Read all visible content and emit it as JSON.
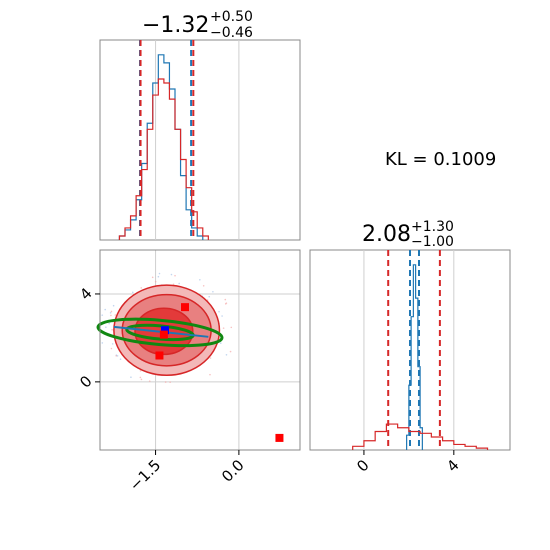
{
  "chart_data": [
    {
      "type": "histogram",
      "panel": "marginal-x",
      "title": {
        "median": "−1.32",
        "plus": "+0.50",
        "minus": "−0.46"
      },
      "xlim": [
        -2.5,
        1.1
      ],
      "series": [
        {
          "name": "",
          "color": "#1f77b4",
          "bins": [
            [
              -2.15,
              -2.05,
              0.02
            ],
            [
              -2.05,
              -1.95,
              0.05
            ],
            [
              -1.95,
              -1.85,
              0.1
            ],
            [
              -1.85,
              -1.75,
              0.2
            ],
            [
              -1.75,
              -1.65,
              0.38
            ],
            [
              -1.65,
              -1.55,
              0.58
            ],
            [
              -1.55,
              -1.45,
              0.78
            ],
            [
              -1.45,
              -1.35,
              0.92
            ],
            [
              -1.35,
              -1.25,
              0.88
            ],
            [
              -1.25,
              -1.15,
              0.75
            ],
            [
              -1.15,
              -1.05,
              0.55
            ],
            [
              -1.05,
              -0.95,
              0.32
            ],
            [
              -0.95,
              -0.85,
              0.15
            ],
            [
              -0.85,
              -0.75,
              0.06
            ],
            [
              -0.75,
              -0.65,
              0.02
            ]
          ],
          "quantiles": [
            -1.78,
            -0.86
          ]
        },
        {
          "name": "",
          "color": "#d62728",
          "bins": [
            [
              -2.15,
              -2.05,
              0.02
            ],
            [
              -2.05,
              -1.95,
              0.06
            ],
            [
              -1.95,
              -1.85,
              0.12
            ],
            [
              -1.85,
              -1.75,
              0.22
            ],
            [
              -1.75,
              -1.65,
              0.35
            ],
            [
              -1.65,
              -1.55,
              0.55
            ],
            [
              -1.55,
              -1.45,
              0.72
            ],
            [
              -1.45,
              -1.35,
              0.8
            ],
            [
              -1.35,
              -1.25,
              0.78
            ],
            [
              -1.25,
              -1.15,
              0.7
            ],
            [
              -1.15,
              -1.05,
              0.55
            ],
            [
              -1.05,
              -0.95,
              0.4
            ],
            [
              -0.95,
              -0.85,
              0.26
            ],
            [
              -0.85,
              -0.75,
              0.14
            ],
            [
              -0.75,
              -0.65,
              0.06
            ],
            [
              -0.65,
              -0.55,
              0.02
            ]
          ],
          "quantiles": [
            -1.77,
            -0.82
          ]
        }
      ]
    },
    {
      "type": "histogram",
      "panel": "marginal-y",
      "title": {
        "median": "2.08",
        "plus": "+1.30",
        "minus": "−1.00"
      },
      "xlim": [
        -2.4,
        6.5
      ],
      "xticks": [
        "0",
        "4"
      ],
      "series": [
        {
          "name": "",
          "color": "#1f77b4",
          "bins": [
            [
              1.9,
              2.0,
              0.08
            ],
            [
              2.0,
              2.1,
              0.35
            ],
            [
              2.1,
              2.2,
              0.72
            ],
            [
              2.2,
              2.3,
              1.0
            ],
            [
              2.3,
              2.4,
              0.82
            ],
            [
              2.4,
              2.5,
              0.45
            ],
            [
              2.5,
              2.6,
              0.12
            ]
          ],
          "quantiles": [
            2.05,
            2.45
          ]
        },
        {
          "name": "",
          "color": "#d62728",
          "bins": [
            [
              -0.5,
              0.0,
              0.02
            ],
            [
              0.0,
              0.5,
              0.05
            ],
            [
              0.5,
              1.0,
              0.1
            ],
            [
              1.0,
              1.5,
              0.14
            ],
            [
              1.5,
              2.0,
              0.12
            ],
            [
              2.0,
              2.5,
              0.1
            ],
            [
              2.5,
              3.0,
              0.09
            ],
            [
              3.0,
              3.5,
              0.07
            ],
            [
              3.5,
              4.0,
              0.05
            ],
            [
              4.0,
              4.5,
              0.03
            ],
            [
              4.5,
              5.0,
              0.02
            ],
            [
              5.0,
              5.5,
              0.01
            ]
          ],
          "quantiles": [
            1.08,
            3.38
          ]
        }
      ]
    },
    {
      "type": "contour",
      "panel": "joint",
      "xlim": [
        -2.5,
        1.1
      ],
      "ylim": [
        -3.1,
        6.0
      ],
      "xticks": [
        "−1.5",
        "0.0"
      ],
      "yticks": [
        "0",
        "4"
      ],
      "filled_contours": [
        {
          "color": "#f3b8b8",
          "center": [
            -1.3,
            2.35
          ],
          "rx": 0.95,
          "ry": 2.05
        },
        {
          "color": "#e88080",
          "center": [
            -1.3,
            2.35
          ],
          "rx": 0.8,
          "ry": 1.62
        },
        {
          "color": "#e33a3a",
          "center": [
            -1.35,
            2.3
          ],
          "rx": 0.52,
          "ry": 1.05
        }
      ],
      "green_ellipses": [
        {
          "center": [
            -1.42,
            2.25
          ],
          "rx": 1.12,
          "ry": 0.55,
          "color": "#118811"
        },
        {
          "center": [
            -1.42,
            2.25
          ],
          "rx": 0.6,
          "ry": 0.3,
          "color": "#118811"
        }
      ],
      "markers": [
        {
          "x": -0.97,
          "y": 3.4,
          "color": "#ff0000"
        },
        {
          "x": -1.33,
          "y": 2.35,
          "color": "#0000ff"
        },
        {
          "x": -1.35,
          "y": 2.15,
          "color": "#ff0000"
        },
        {
          "x": -1.43,
          "y": 1.2,
          "color": "#ff0000"
        },
        {
          "x": 0.73,
          "y": -2.55,
          "color": "#ff0000"
        }
      ]
    }
  ],
  "kl_text": "KL = 0.1009"
}
